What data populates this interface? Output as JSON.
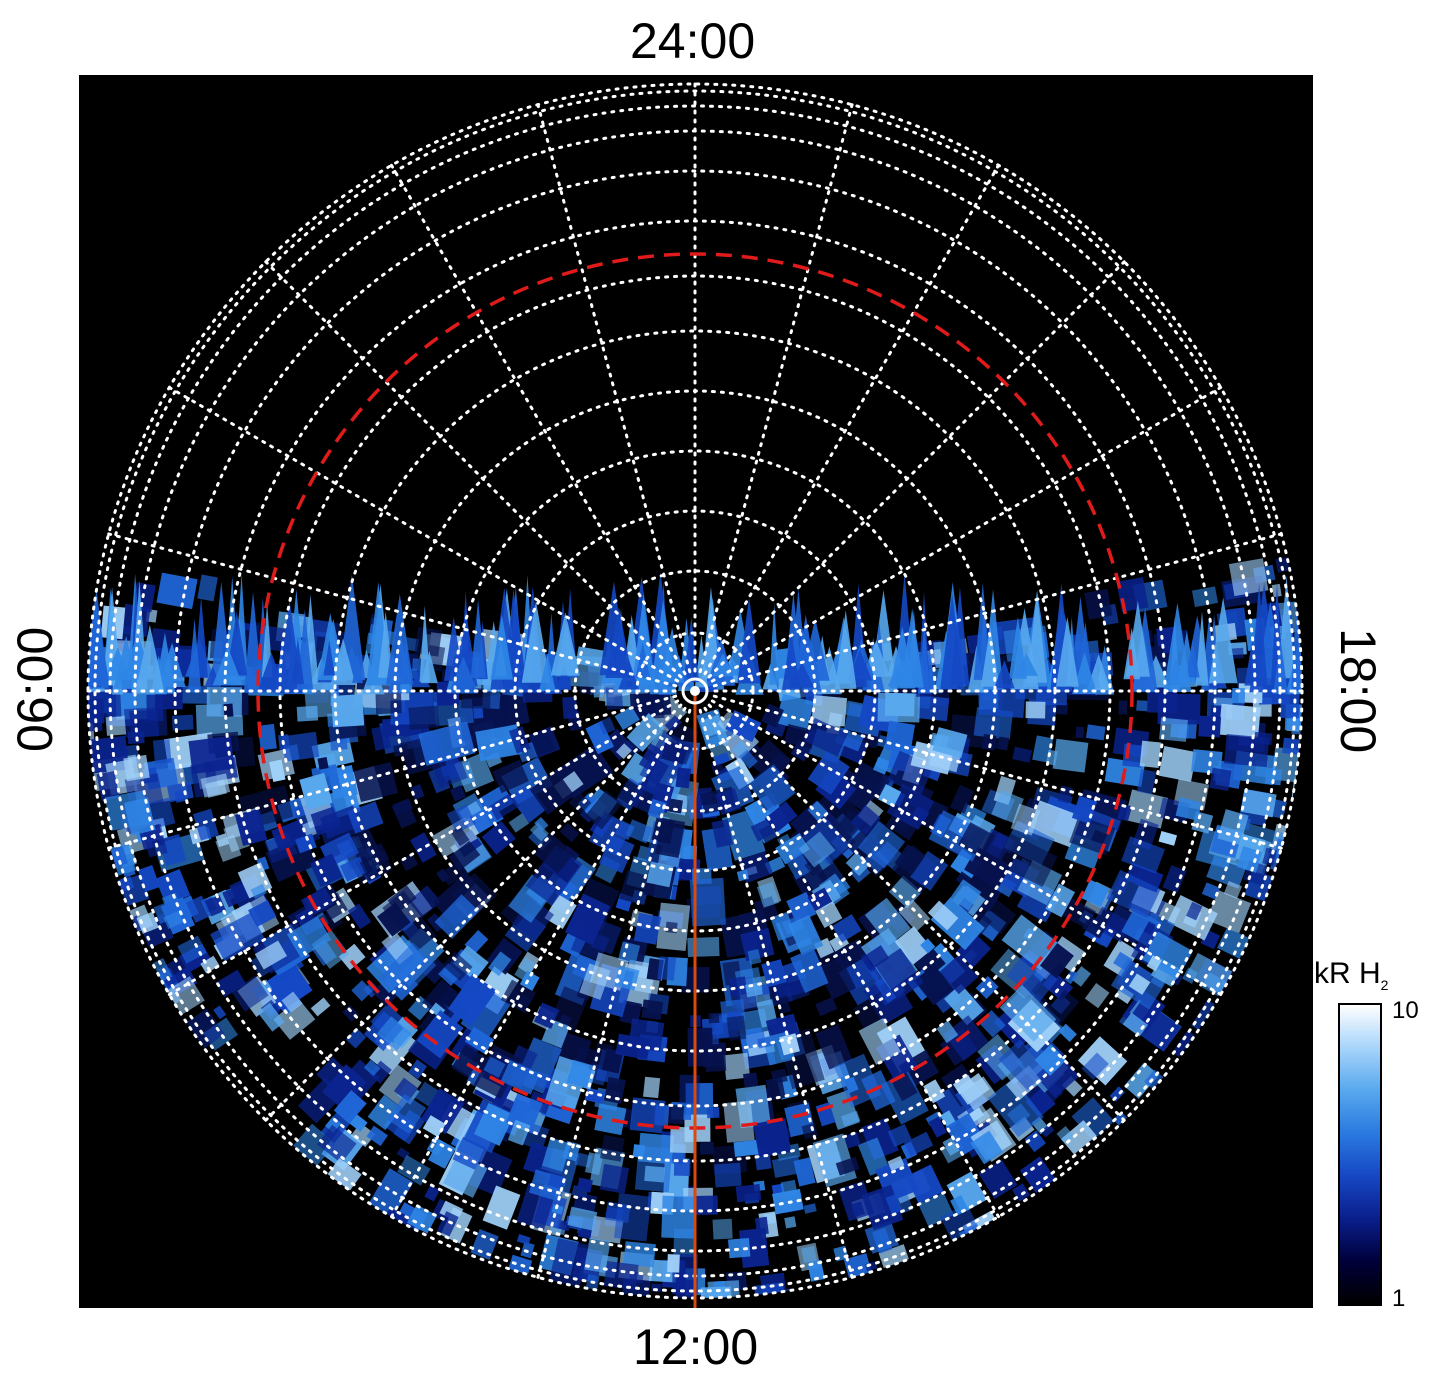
{
  "labels": {
    "top": "24:00",
    "bottom": "12:00",
    "left": "06:00",
    "right": "18:00"
  },
  "colorbar": {
    "unit": "kR H",
    "subscript": "2",
    "max": "10",
    "min": "1",
    "colors": [
      "#000000",
      "#00003a",
      "#0a1f8c",
      "#1748c4",
      "#2a7ae0",
      "#58a8ee",
      "#a7d4fa",
      "#ffffff"
    ]
  },
  "colors": {
    "background": "#000000",
    "grid": "#ffffff",
    "dashed_circle": "#e01b1b",
    "meridian": "#d84a10"
  }
}
